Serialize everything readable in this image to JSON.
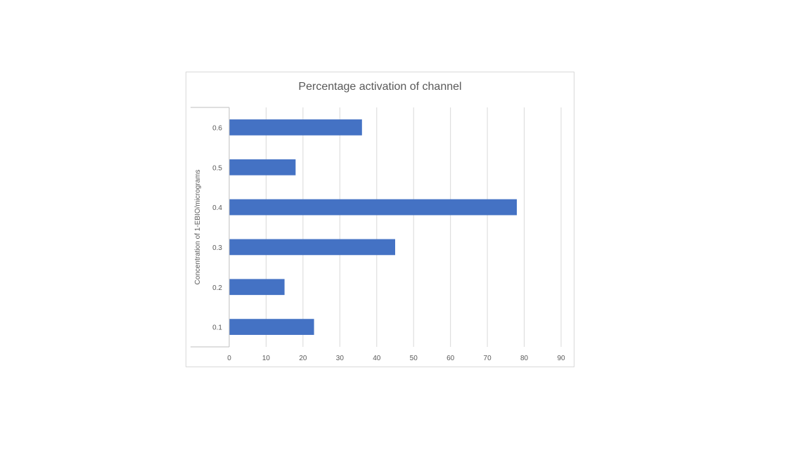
{
  "chart_data": {
    "type": "bar",
    "orientation": "horizontal",
    "title": "Percentage activation of channel",
    "xlabel": "",
    "ylabel": "Concentration of 1-EBIO/micrograms",
    "categories": [
      "0.1",
      "0.2",
      "0.3",
      "0.4",
      "0.5",
      "0.6"
    ],
    "series": [
      {
        "values": [
          23,
          15,
          45,
          78,
          18,
          36
        ]
      }
    ],
    "xlim": [
      0,
      90
    ],
    "xticks": [
      "0",
      "10",
      "20",
      "30",
      "40",
      "50",
      "60",
      "70",
      "80",
      "90"
    ],
    "grid": "vertical",
    "legend": "none",
    "colors": {
      "bar": "#4472C4",
      "grid": "#d9d9d9",
      "axis": "#bfbfbf",
      "text": "#595959"
    }
  }
}
